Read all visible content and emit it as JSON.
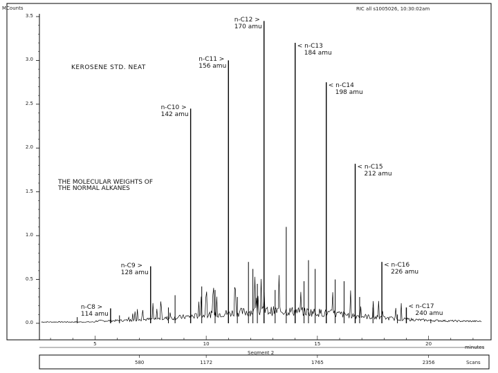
{
  "chart_data": {
    "type": "line",
    "ylabel": "MCounts",
    "header": "RIC all s1005026,  10:30:02am",
    "title": "KEROSENE STD. NEAT",
    "subtitle_lines": [
      "THE MOLECULAR WEIGHTS OF",
      "THE NORMAL ALKANES"
    ],
    "xlabel_unit": "minutes",
    "segment_label": "Segment 2",
    "scans_label": "Scans",
    "xlim": [
      2.5,
      22.5
    ],
    "ylim": [
      0,
      3.5
    ],
    "y_ticks": [
      "0.0",
      "0.5",
      "1.0",
      "1.5",
      "2.0",
      "2.5",
      "3.0",
      "3.5"
    ],
    "x_ticks": [
      5,
      10,
      15,
      20
    ],
    "x_tick_labels": [
      "5",
      "10",
      "15",
      "20"
    ],
    "scan_ticks": [
      "580",
      "1172",
      "1765",
      "2356"
    ],
    "scan_tick_positions": [
      7.0,
      10.0,
      15.0,
      20.0
    ],
    "peaks": [
      {
        "name": "n-C8",
        "amu": "114 amu",
        "marker": ">",
        "rt": 5.7,
        "height": 0.17
      },
      {
        "name": "n-C9",
        "amu": "128 amu",
        "marker": ">",
        "rt": 7.5,
        "height": 0.65
      },
      {
        "name": "n-C10",
        "amu": "142 amu",
        "marker": ">",
        "rt": 9.3,
        "height": 2.45
      },
      {
        "name": "n-C11",
        "amu": "156 amu",
        "marker": ">",
        "rt": 11.0,
        "height": 3.0
      },
      {
        "name": "n-C12",
        "amu": "170 amu",
        "marker": ">",
        "rt": 12.6,
        "height": 3.45
      },
      {
        "name": "n-C13",
        "amu": "184 amu",
        "marker": "<",
        "rt": 14.0,
        "height": 3.2
      },
      {
        "name": "n-C14",
        "amu": "198 amu",
        "marker": "<",
        "rt": 15.4,
        "height": 2.75
      },
      {
        "name": "n-C15",
        "amu": "212 amu",
        "marker": "<",
        "rt": 16.7,
        "height": 1.82
      },
      {
        "name": "n-C16",
        "amu": "226 amu",
        "marker": "<",
        "rt": 17.9,
        "height": 0.7
      },
      {
        "name": "n-C17",
        "amu": "240 amu",
        "marker": "<",
        "rt": 19.0,
        "height": 0.18
      }
    ]
  }
}
